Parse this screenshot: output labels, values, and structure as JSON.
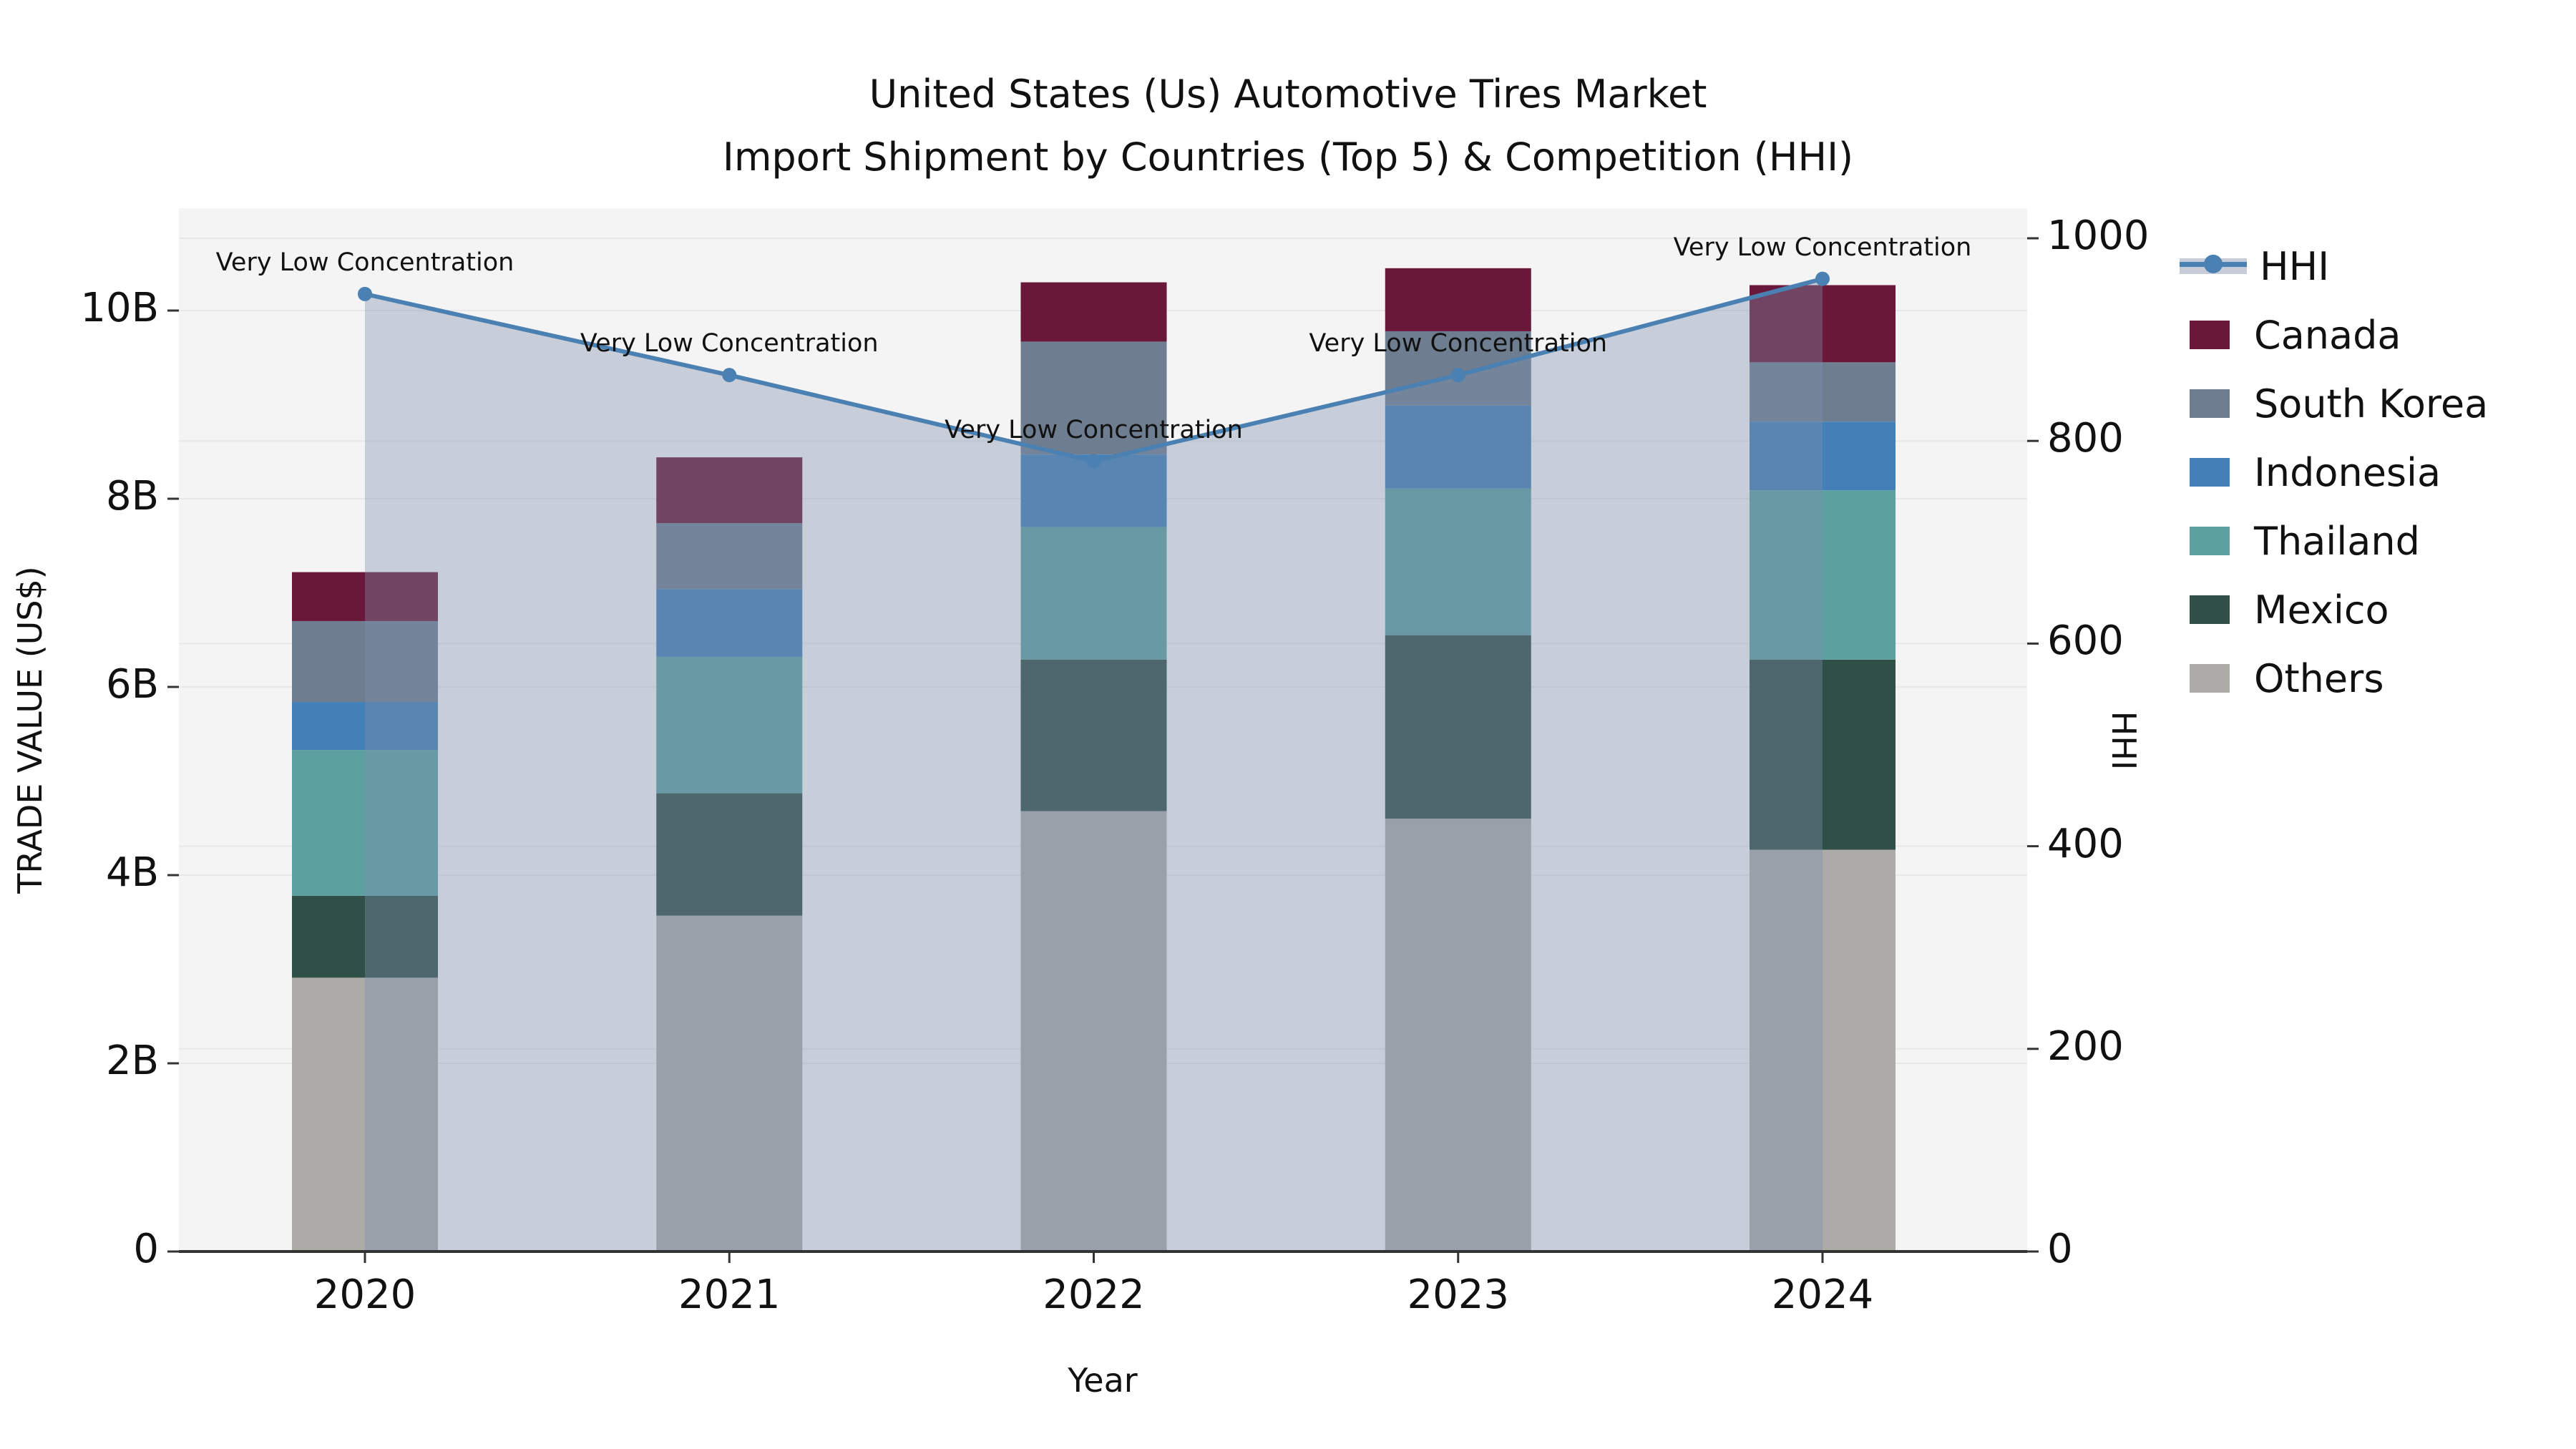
{
  "title": {
    "line1": "United States (Us) Automotive Tires Market",
    "line2": "Import Shipment by Countries (Top 5) & Competition (HHI)"
  },
  "axes": {
    "left": {
      "title": "TRADE VALUE (US$)",
      "ticks": [
        {
          "label": "0",
          "value": 0
        },
        {
          "label": "2B",
          "value": 2
        },
        {
          "label": "4B",
          "value": 4
        },
        {
          "label": "6B",
          "value": 6
        },
        {
          "label": "8B",
          "value": 8
        },
        {
          "label": "10B",
          "value": 10
        }
      ]
    },
    "right": {
      "title": "HHI",
      "ticks": [
        {
          "label": "0",
          "value": 0
        },
        {
          "label": "200",
          "value": 200
        },
        {
          "label": "400",
          "value": 400
        },
        {
          "label": "600",
          "value": 600
        },
        {
          "label": "800",
          "value": 800
        },
        {
          "label": "1000",
          "value": 1000
        }
      ]
    },
    "x": {
      "title": "Year"
    }
  },
  "legend": {
    "items": [
      {
        "label": "HHI",
        "type": "line",
        "color": "#4a80b2",
        "band_color": "#c7cdd8"
      },
      {
        "label": "Canada",
        "type": "box",
        "color": "#6a1839"
      },
      {
        "label": "South Korea",
        "type": "box",
        "color": "#6e7e90"
      },
      {
        "label": "Indonesia",
        "type": "box",
        "color": "#4380b8"
      },
      {
        "label": "Thailand",
        "type": "box",
        "color": "#5ca0a0"
      },
      {
        "label": "Mexico",
        "type": "box",
        "color": "#2f4f47"
      },
      {
        "label": "Others",
        "type": "box",
        "color": "#acaba8"
      }
    ]
  },
  "chart_data": {
    "type": "bar",
    "subtype": "stacked-bars-with-line-overlay",
    "categories": [
      "2020",
      "2021",
      "2022",
      "2023",
      "2024"
    ],
    "series": [
      {
        "name": "Others",
        "color": "#acaba8",
        "values": [
          2.91,
          3.57,
          4.68,
          4.6,
          4.27
        ]
      },
      {
        "name": "Mexico",
        "color": "#2f4f47",
        "values": [
          0.87,
          1.3,
          1.61,
          1.95,
          2.02
        ]
      },
      {
        "name": "Thailand",
        "color": "#5ca0a0",
        "values": [
          1.55,
          1.45,
          1.41,
          1.56,
          1.8
        ]
      },
      {
        "name": "Indonesia",
        "color": "#4380b8",
        "values": [
          0.51,
          0.72,
          0.77,
          0.88,
          0.73
        ]
      },
      {
        "name": "South Korea",
        "color": "#6e7e90",
        "values": [
          0.86,
          0.7,
          1.2,
          0.79,
          0.63
        ]
      },
      {
        "name": "Canada",
        "color": "#6a1839",
        "values": [
          0.52,
          0.7,
          0.63,
          0.67,
          0.82
        ]
      }
    ],
    "line": {
      "name": "HHI",
      "color": "#4a80b2",
      "area_fill_color": "#7d8daa",
      "area_fill_opacity": 0.38,
      "values": [
        945,
        865,
        780,
        865,
        960
      ],
      "annotations": [
        "Very Low Concentration",
        "Very Low Concentration",
        "Very Low Concentration",
        "Very Low Concentration",
        "Very Low Concentration"
      ]
    },
    "title": "United States (Us) Automotive Tires Market Import Shipment by Countries (Top 5) & Competition (HHI)",
    "xlabel": "Year",
    "ylabel": "TRADE VALUE (US$)",
    "ylabel_right": "HHI",
    "ylim_left": [
      0,
      11.1
    ],
    "ylim_right": [
      0,
      1000
    ],
    "grid": true,
    "legend_position": "right"
  },
  "style": {
    "plot_bg": "#f4f4f5",
    "grid_color": "#e6e8eb",
    "axis_line_color": "#333333",
    "text_color": "#111111"
  }
}
